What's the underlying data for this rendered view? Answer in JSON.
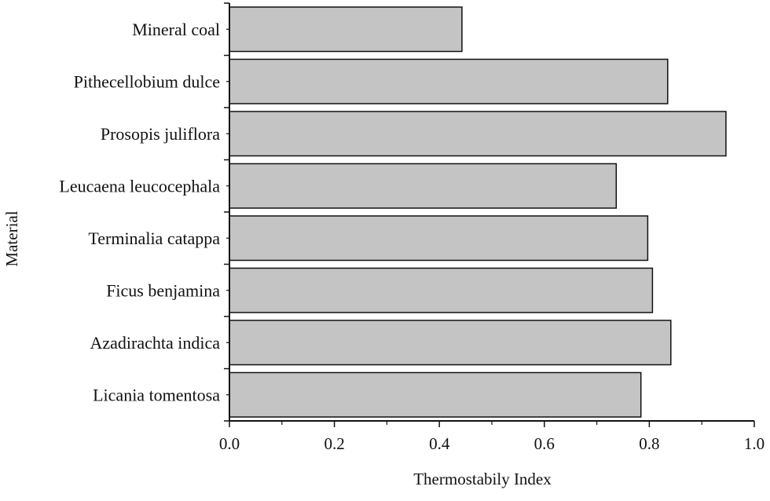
{
  "chart_data": {
    "type": "bar",
    "orientation": "horizontal",
    "title": "",
    "xlabel": "Thermostabily Index",
    "ylabel": "Material",
    "categories": [
      "Mineral coal",
      "Pithecellobium dulce",
      "Prosopis juliflora",
      "Leucaena leucocephala",
      "Terminalia catappa",
      "Ficus benjamina",
      "Azadirachta indica",
      "Licania tomentosa"
    ],
    "values": [
      0.443,
      0.835,
      0.946,
      0.737,
      0.797,
      0.806,
      0.841,
      0.784
    ],
    "xlim": [
      0.0,
      1.0
    ],
    "xticks": [
      "0.0",
      "0.2",
      "0.4",
      "0.6",
      "0.8",
      "1.0"
    ],
    "grid": false,
    "legend": "none",
    "bar_color": "#c4c4c4",
    "bar_edge_color": "#111111"
  }
}
